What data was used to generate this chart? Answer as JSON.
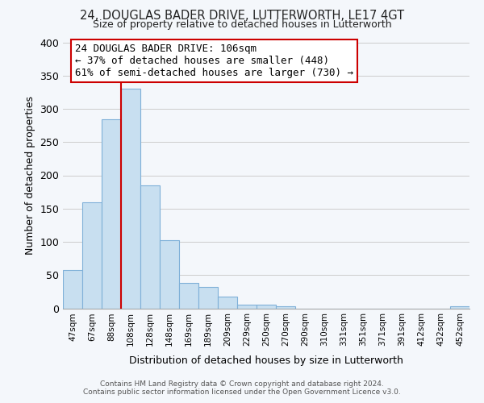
{
  "title1": "24, DOUGLAS BADER DRIVE, LUTTERWORTH, LE17 4GT",
  "title2": "Size of property relative to detached houses in Lutterworth",
  "xlabel": "Distribution of detached houses by size in Lutterworth",
  "ylabel": "Number of detached properties",
  "bar_labels": [
    "47sqm",
    "67sqm",
    "88sqm",
    "108sqm",
    "128sqm",
    "148sqm",
    "169sqm",
    "189sqm",
    "209sqm",
    "229sqm",
    "250sqm",
    "270sqm",
    "290sqm",
    "310sqm",
    "331sqm",
    "351sqm",
    "371sqm",
    "391sqm",
    "412sqm",
    "432sqm",
    "452sqm"
  ],
  "bar_values": [
    57,
    160,
    284,
    330,
    185,
    103,
    38,
    32,
    18,
    6,
    5,
    3,
    0,
    0,
    0,
    0,
    0,
    0,
    0,
    0,
    3
  ],
  "bar_color": "#c8dff0",
  "bar_edge_color": "#7fb0d8",
  "vline_x": 3,
  "vline_color": "#cc0000",
  "ylim": [
    0,
    400
  ],
  "yticks": [
    0,
    50,
    100,
    150,
    200,
    250,
    300,
    350,
    400
  ],
  "annotation_title": "24 DOUGLAS BADER DRIVE: 106sqm",
  "annotation_line1": "← 37% of detached houses are smaller (448)",
  "annotation_line2": "61% of semi-detached houses are larger (730) →",
  "annotation_box_color": "#ffffff",
  "annotation_box_edge": "#cc0000",
  "footer1": "Contains HM Land Registry data © Crown copyright and database right 2024.",
  "footer2": "Contains public sector information licensed under the Open Government Licence v3.0.",
  "bg_color": "#f4f7fb",
  "plot_bg_color": "#f4f7fb"
}
